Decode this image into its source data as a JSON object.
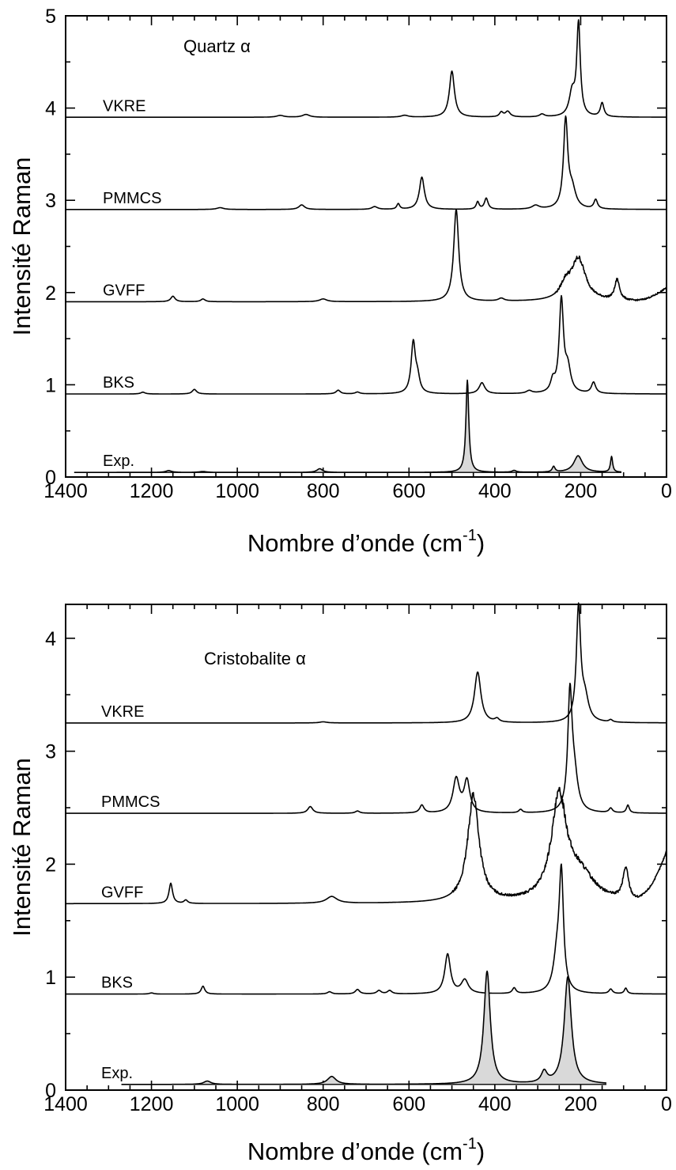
{
  "chart_data": [
    {
      "type": "line",
      "title": "Quartz α",
      "xlabel": "Nombre d’onde (cm",
      "xlabel_sup": "-1",
      "xlabel_suffix": ")",
      "ylabel": "Intensité Raman",
      "xlim": [
        1400,
        0
      ],
      "ylim": [
        0,
        5
      ],
      "x_ticks": [
        1400,
        1200,
        1000,
        800,
        600,
        400,
        200,
        0
      ],
      "y_ticks": [
        0,
        1,
        2,
        3,
        4,
        5
      ],
      "grid": false,
      "colors": {
        "line": "#000000",
        "exp_fill": "#d9d9d9"
      },
      "series": [
        {
          "name": "VKRE",
          "offset": 3.9,
          "baseline": 3.9,
          "peaks": [
            [
              500,
              0.5,
              7
            ],
            [
              205,
              1.0,
              5
            ],
            [
              220,
              0.25,
              8
            ],
            [
              150,
              0.15,
              5
            ],
            [
              370,
              0.06,
              7
            ],
            [
              385,
              0.05,
              5
            ],
            [
              840,
              0.03,
              10
            ],
            [
              900,
              0.02,
              10
            ],
            [
              610,
              0.02,
              10
            ],
            [
              290,
              0.03,
              7
            ]
          ]
        },
        {
          "name": "PMMCS",
          "offset": 2.9,
          "baseline": 2.9,
          "peaks": [
            [
              570,
              0.35,
              7
            ],
            [
              235,
              0.95,
              6
            ],
            [
              220,
              0.2,
              10
            ],
            [
              165,
              0.1,
              5
            ],
            [
              420,
              0.12,
              5
            ],
            [
              440,
              0.08,
              4
            ],
            [
              850,
              0.05,
              8
            ],
            [
              1040,
              0.02,
              10
            ],
            [
              680,
              0.03,
              8
            ],
            [
              625,
              0.06,
              4
            ],
            [
              305,
              0.04,
              10
            ]
          ]
        },
        {
          "name": "GVFF",
          "offset": 1.9,
          "baseline": 1.9,
          "peaks": [
            [
              490,
              1.0,
              7
            ],
            [
              205,
              0.45,
              20
            ],
            [
              235,
              0.15,
              15
            ],
            [
              115,
              0.22,
              7
            ],
            [
              1150,
              0.06,
              6
            ],
            [
              1080,
              0.03,
              6
            ],
            [
              800,
              0.03,
              10
            ],
            [
              385,
              0.03,
              8
            ]
          ],
          "noise_region": [
            260,
            0
          ],
          "end_rise": 0.15
        },
        {
          "name": "BKS",
          "offset": 0.9,
          "baseline": 0.9,
          "peaks": [
            [
              590,
              0.55,
              6
            ],
            [
              580,
              0.15,
              6
            ],
            [
              245,
              1.0,
              6
            ],
            [
              230,
              0.25,
              8
            ],
            [
              265,
              0.12,
              6
            ],
            [
              430,
              0.12,
              8
            ],
            [
              170,
              0.12,
              6
            ],
            [
              1220,
              0.02,
              6
            ],
            [
              1100,
              0.05,
              6
            ],
            [
              765,
              0.04,
              6
            ],
            [
              720,
              0.02,
              6
            ],
            [
              320,
              0.03,
              8
            ]
          ]
        },
        {
          "name": "Exp.",
          "offset": 0.05,
          "baseline": 0.05,
          "filled": true,
          "range": [
            1380,
            105
          ],
          "peaks": [
            [
              464,
              1.0,
              4
            ],
            [
              206,
              0.18,
              12
            ],
            [
              128,
              0.17,
              3
            ],
            [
              263,
              0.06,
              4
            ],
            [
              355,
              0.02,
              6
            ],
            [
              808,
              0.04,
              8
            ],
            [
              1160,
              0.02,
              8
            ],
            [
              1080,
              0.01,
              10
            ]
          ]
        }
      ]
    },
    {
      "type": "line",
      "title": "Cristobalite α",
      "xlabel": "Nombre d’onde (cm",
      "xlabel_sup": "-1",
      "xlabel_suffix": ")",
      "ylabel": "Intensité Raman",
      "xlim": [
        1400,
        0
      ],
      "ylim": [
        0,
        4.3
      ],
      "x_ticks": [
        1400,
        1200,
        1000,
        800,
        600,
        400,
        200,
        0
      ],
      "y_ticks": [
        0,
        1,
        2,
        3,
        4
      ],
      "grid": false,
      "colors": {
        "line": "#000000",
        "exp_fill": "#d9d9d9"
      },
      "series": [
        {
          "name": "VKRE",
          "offset": 3.25,
          "baseline": 3.25,
          "peaks": [
            [
              440,
              0.45,
              9
            ],
            [
              205,
              1.0,
              6
            ],
            [
              190,
              0.2,
              10
            ],
            [
              395,
              0.03,
              6
            ],
            [
              800,
              0.01,
              10
            ],
            [
              130,
              0.02,
              5
            ]
          ]
        },
        {
          "name": "PMMCS",
          "offset": 2.45,
          "baseline": 2.45,
          "peaks": [
            [
              490,
              0.3,
              9
            ],
            [
              465,
              0.28,
              8
            ],
            [
              225,
              1.0,
              6
            ],
            [
              215,
              0.3,
              10
            ],
            [
              830,
              0.06,
              7
            ],
            [
              570,
              0.07,
              6
            ],
            [
              90,
              0.07,
              4
            ],
            [
              130,
              0.04,
              5
            ],
            [
              720,
              0.02,
              6
            ],
            [
              340,
              0.03,
              5
            ]
          ]
        },
        {
          "name": "GVFF",
          "offset": 1.65,
          "baseline": 1.65,
          "peaks": [
            [
              450,
              0.95,
              16
            ],
            [
              250,
              0.9,
              22
            ],
            [
              1155,
              0.18,
              5
            ],
            [
              1120,
              0.03,
              5
            ],
            [
              780,
              0.06,
              15
            ],
            [
              95,
              0.28,
              8
            ],
            [
              200,
              0.22,
              40
            ]
          ],
          "noise_region": [
            500,
            0
          ],
          "end_rise": 0.45
        },
        {
          "name": "BKS",
          "offset": 0.85,
          "baseline": 0.85,
          "peaks": [
            [
              510,
              0.35,
              8
            ],
            [
              470,
              0.12,
              10
            ],
            [
              245,
              1.0,
              6
            ],
            [
              255,
              0.3,
              10
            ],
            [
              1080,
              0.07,
              5
            ],
            [
              720,
              0.04,
              6
            ],
            [
              670,
              0.03,
              6
            ],
            [
              645,
              0.03,
              6
            ],
            [
              785,
              0.02,
              6
            ],
            [
              355,
              0.05,
              5
            ],
            [
              130,
              0.04,
              5
            ],
            [
              95,
              0.05,
              4
            ],
            [
              1200,
              0.01,
              6
            ]
          ]
        },
        {
          "name": "Exp.",
          "offset": 0.05,
          "baseline": 0.05,
          "filled": true,
          "range": [
            1270,
            140
          ],
          "peaks": [
            [
              418,
              1.0,
              9
            ],
            [
              230,
              0.95,
              10
            ],
            [
              285,
              0.1,
              8
            ],
            [
              1070,
              0.03,
              10
            ],
            [
              780,
              0.07,
              12
            ]
          ]
        }
      ]
    }
  ]
}
